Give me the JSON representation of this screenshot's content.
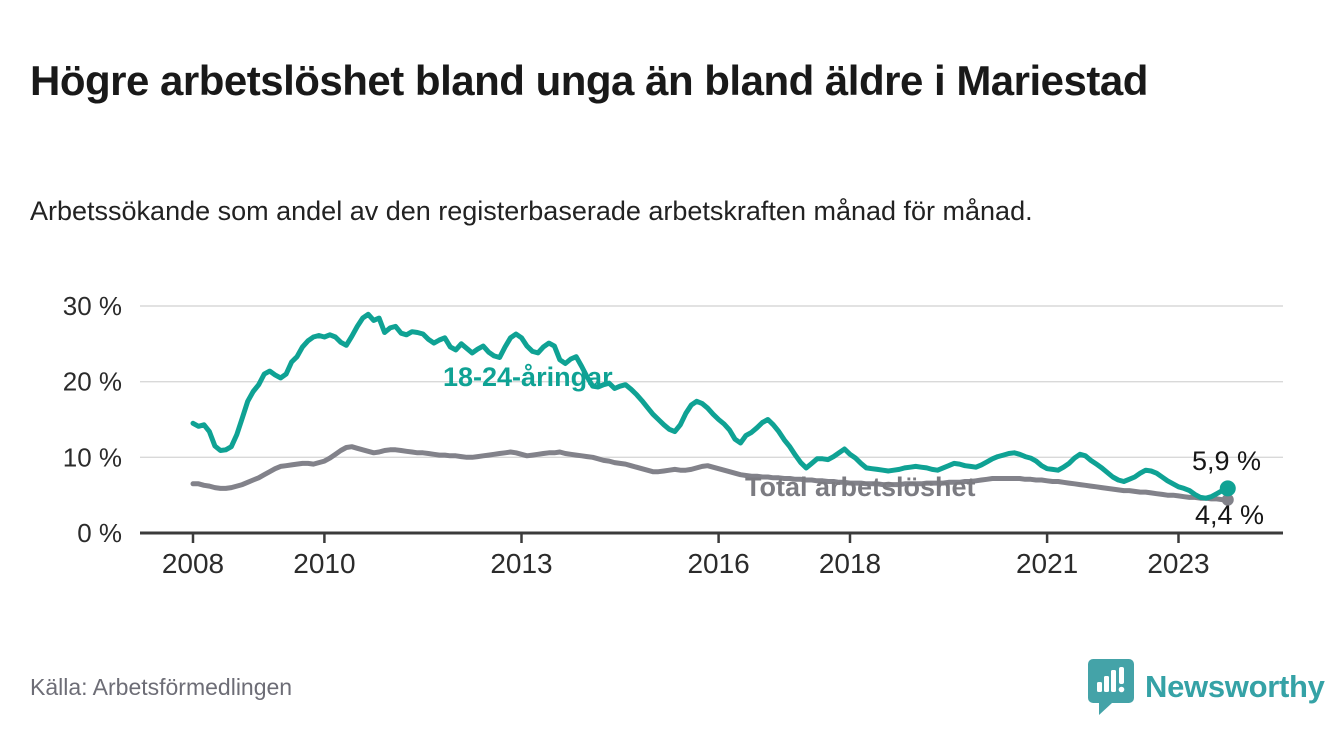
{
  "page": {
    "brand": "Newsworthy"
  },
  "colors": {
    "series_young_teal": "#0fa294",
    "series_total_gray": "#82828a",
    "brand_teal": "#35a2a6",
    "axis_dark": "#3b3b3b",
    "gridline_gray": "#d9d9d9",
    "text_dark": "#191919",
    "source_gray": "#6d6d76"
  },
  "chart_data": {
    "type": "line",
    "title": "Högre arbetslöshet bland unga än bland äldre i Mariestad",
    "subtitle": "Arbetssökande som andel av den registerbaserade arbetskraften månad för månad.",
    "source": "Källa: Arbetsförmedlingen",
    "unit": "%",
    "interval": "monthly",
    "start": "2008-01",
    "end": "2023-10",
    "grid": "horizontal",
    "x_range_years": [
      2007.2,
      2024.6
    ],
    "y_range": [
      0,
      33.5
    ],
    "x_ticks": [
      {
        "year": 2008,
        "label": "2008"
      },
      {
        "year": 2010,
        "label": "2010"
      },
      {
        "year": 2013,
        "label": "2013"
      },
      {
        "year": 2016,
        "label": "2016"
      },
      {
        "year": 2018,
        "label": "2018"
      },
      {
        "year": 2021,
        "label": "2021"
      },
      {
        "year": 2023,
        "label": "2023"
      }
    ],
    "y_ticks": [
      {
        "value": 0,
        "label": "0 %"
      },
      {
        "value": 10,
        "label": "10 %"
      },
      {
        "value": 20,
        "label": "20 %"
      },
      {
        "value": 30,
        "label": "30 %"
      }
    ],
    "series": [
      {
        "name": "18-24-åringar",
        "color": "#0fa294",
        "end_label": "5,9 %",
        "end_value": 5.9,
        "values": [
          14.5,
          14.1,
          14.3,
          13.4,
          11.5,
          10.9,
          11.0,
          11.4,
          13.0,
          15.2,
          17.4,
          18.7,
          19.6,
          21.0,
          21.4,
          20.9,
          20.5,
          21.0,
          22.6,
          23.3,
          24.6,
          25.4,
          25.9,
          26.1,
          25.9,
          26.2,
          25.9,
          25.2,
          24.8,
          26.0,
          27.3,
          28.4,
          28.9,
          28.1,
          28.4,
          26.5,
          27.1,
          27.3,
          26.4,
          26.2,
          26.6,
          26.5,
          26.3,
          25.6,
          25.1,
          25.5,
          25.8,
          24.6,
          24.2,
          25.0,
          24.4,
          23.8,
          24.3,
          24.7,
          23.9,
          23.4,
          23.2,
          24.6,
          25.8,
          26.3,
          25.8,
          24.7,
          24.0,
          23.8,
          24.6,
          25.1,
          24.7,
          22.9,
          22.4,
          23.0,
          23.3,
          22.0,
          20.6,
          19.4,
          19.3,
          19.6,
          19.8,
          19.1,
          19.4,
          19.6,
          19.0,
          18.3,
          17.5,
          16.6,
          15.7,
          15.0,
          14.3,
          13.7,
          13.4,
          14.3,
          15.8,
          16.9,
          17.4,
          17.1,
          16.5,
          15.7,
          15.0,
          14.4,
          13.6,
          12.4,
          11.9,
          12.9,
          13.3,
          13.9,
          14.6,
          15.0,
          14.3,
          13.4,
          12.3,
          11.4,
          10.3,
          9.3,
          8.6,
          9.2,
          9.8,
          9.8,
          9.7,
          10.1,
          10.6,
          11.1,
          10.4,
          9.9,
          9.2,
          8.6,
          8.5,
          8.4,
          8.3,
          8.2,
          8.3,
          8.4,
          8.6,
          8.7,
          8.8,
          8.7,
          8.6,
          8.4,
          8.3,
          8.6,
          8.9,
          9.2,
          9.1,
          8.9,
          8.8,
          8.7,
          9.0,
          9.4,
          9.8,
          10.1,
          10.3,
          10.5,
          10.6,
          10.4,
          10.1,
          9.9,
          9.5,
          8.9,
          8.5,
          8.4,
          8.3,
          8.7,
          9.2,
          9.9,
          10.4,
          10.2,
          9.6,
          9.1,
          8.6,
          8.0,
          7.4,
          7.0,
          6.8,
          7.1,
          7.4,
          7.9,
          8.3,
          8.2,
          7.9,
          7.4,
          6.9,
          6.5,
          6.1,
          5.9,
          5.6,
          5.1,
          4.7,
          4.6,
          4.8,
          5.2,
          5.6,
          5.9
        ]
      },
      {
        "name": "Total arbetslöshet",
        "color": "#82828a",
        "end_label": "4,4 %",
        "end_value": 4.4,
        "values": [
          6.5,
          6.5,
          6.3,
          6.2,
          6.0,
          5.9,
          5.9,
          6.0,
          6.2,
          6.4,
          6.7,
          7.0,
          7.3,
          7.7,
          8.1,
          8.5,
          8.8,
          8.9,
          9.0,
          9.1,
          9.2,
          9.2,
          9.1,
          9.3,
          9.5,
          9.9,
          10.4,
          10.9,
          11.3,
          11.4,
          11.2,
          11.0,
          10.8,
          10.6,
          10.7,
          10.9,
          11.0,
          11.0,
          10.9,
          10.8,
          10.7,
          10.6,
          10.6,
          10.5,
          10.4,
          10.3,
          10.3,
          10.2,
          10.2,
          10.1,
          10.0,
          10.0,
          10.1,
          10.2,
          10.3,
          10.4,
          10.5,
          10.6,
          10.7,
          10.6,
          10.4,
          10.2,
          10.3,
          10.4,
          10.5,
          10.6,
          10.6,
          10.7,
          10.5,
          10.4,
          10.3,
          10.2,
          10.1,
          10.0,
          9.8,
          9.6,
          9.5,
          9.3,
          9.2,
          9.1,
          8.9,
          8.7,
          8.5,
          8.3,
          8.1,
          8.1,
          8.2,
          8.3,
          8.4,
          8.3,
          8.3,
          8.4,
          8.6,
          8.8,
          8.9,
          8.7,
          8.5,
          8.3,
          8.1,
          7.9,
          7.7,
          7.6,
          7.5,
          7.5,
          7.4,
          7.4,
          7.3,
          7.3,
          7.2,
          7.2,
          7.1,
          7.1,
          7.0,
          7.0,
          6.9,
          6.9,
          6.8,
          6.8,
          6.7,
          6.7,
          6.6,
          6.6,
          6.6,
          6.5,
          6.5,
          6.5,
          6.4,
          6.4,
          6.4,
          6.4,
          6.5,
          6.5,
          6.5,
          6.5,
          6.6,
          6.6,
          6.6,
          6.6,
          6.7,
          6.7,
          6.7,
          6.8,
          6.8,
          6.9,
          7.0,
          7.1,
          7.2,
          7.2,
          7.2,
          7.2,
          7.2,
          7.2,
          7.1,
          7.1,
          7.0,
          7.0,
          6.9,
          6.8,
          6.8,
          6.7,
          6.6,
          6.5,
          6.4,
          6.3,
          6.2,
          6.1,
          6.0,
          5.9,
          5.8,
          5.7,
          5.6,
          5.6,
          5.5,
          5.4,
          5.4,
          5.3,
          5.2,
          5.1,
          5.0,
          5.0,
          4.9,
          4.8,
          4.7,
          4.7,
          4.6,
          4.6,
          4.5,
          4.5,
          4.4,
          4.4
        ]
      }
    ]
  }
}
